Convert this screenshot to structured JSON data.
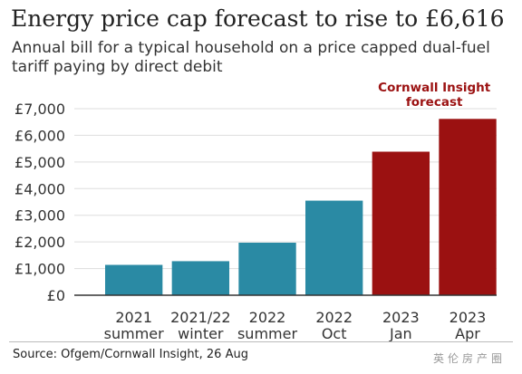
{
  "title": "Energy price cap forecast to rise to £6,616",
  "subtitle": "Annual bill for a typical household on a price capped dual-fuel tariff paying by direct debit",
  "source": "Source: Ofgem/Cornwall Insight, 26 Aug",
  "colors": {
    "ofgem": "#2a8aa4",
    "forecast": "#9b1111",
    "forecast_label": "#9b1111",
    "gridline": "#dddddd",
    "text": "#333333"
  },
  "chart_data": {
    "type": "bar",
    "categories": [
      [
        "2021",
        "summer"
      ],
      [
        "2021/22",
        "winter"
      ],
      [
        "2022",
        "summer"
      ],
      [
        "2022",
        "Oct"
      ],
      [
        "2023",
        "Jan"
      ],
      [
        "2023",
        "Apr"
      ]
    ],
    "values": [
      1138,
      1277,
      1971,
      3549,
      5386,
      6616
    ],
    "forecast_flags": [
      false,
      false,
      false,
      false,
      true,
      true
    ],
    "forecast_label": [
      "Cornwall Insight",
      "forecast"
    ],
    "ylim": [
      0,
      7000
    ],
    "yticks": [
      0,
      1000,
      2000,
      3000,
      4000,
      5000,
      6000,
      7000
    ],
    "ytick_labels": [
      "£0",
      "£1,000",
      "£2,000",
      "£3,000",
      "£4,000",
      "£5,000",
      "£6,000",
      "£7,000"
    ],
    "grid": true
  }
}
